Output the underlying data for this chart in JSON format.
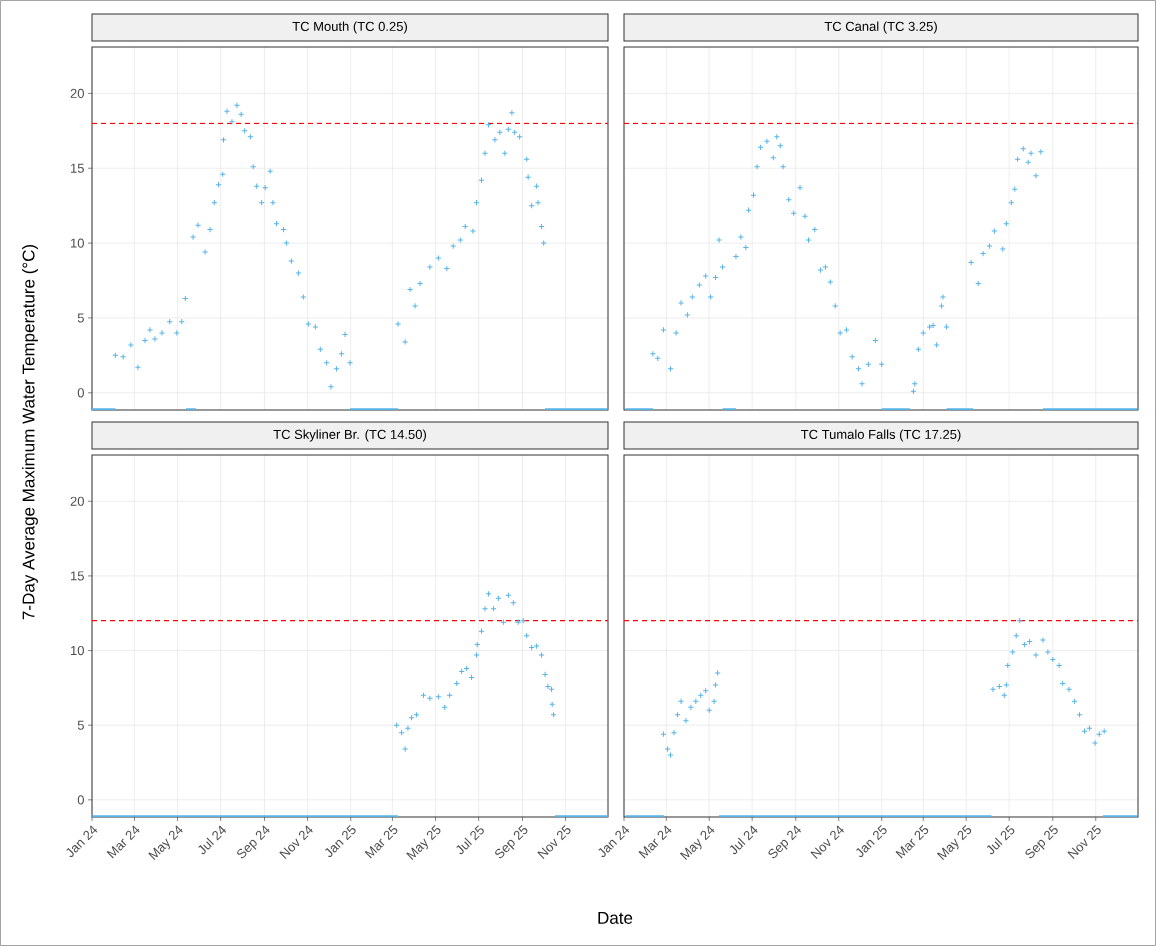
{
  "chart_data": [
    {
      "type": "scatter",
      "title": "TC Mouth (TC 0.25)",
      "ylabel": "7-Day Average Maximum Water Temperature (°C)",
      "series": [
        {
          "color": "#56b4e9",
          "marker": "cross",
          "x": [
            "2024-02-03",
            "2024-02-14",
            "2024-02-25",
            "2024-03-06",
            "2024-03-16",
            "2024-03-23",
            "2024-03-30",
            "2024-04-09",
            "2024-04-20",
            "2024-04-30",
            "2024-05-07",
            "2024-05-12",
            "2024-05-23",
            "2024-05-30",
            "2024-06-09",
            "2024-06-16",
            "2024-06-22",
            "2024-06-28",
            "2024-07-04",
            "2024-07-05",
            "2024-07-10",
            "2024-07-17",
            "2024-07-24",
            "2024-07-30",
            "2024-08-04",
            "2024-08-12",
            "2024-08-16",
            "2024-08-21",
            "2024-08-28",
            "2024-09-02",
            "2024-09-09",
            "2024-09-13",
            "2024-09-18",
            "2024-09-28",
            "2024-10-02",
            "2024-10-09",
            "2024-10-19",
            "2024-10-26",
            "2024-11-02",
            "2024-11-12",
            "2024-11-19",
            "2024-11-28",
            "2024-12-04",
            "2024-12-12",
            "2024-12-19",
            "2024-12-24",
            "2024-12-31",
            "2025-03-09",
            "2025-03-19",
            "2025-03-26",
            "2025-04-02",
            "2025-04-09",
            "2025-04-23",
            "2025-05-05",
            "2025-05-17",
            "2025-05-26",
            "2025-06-05",
            "2025-06-12",
            "2025-06-23",
            "2025-06-28",
            "2025-07-05",
            "2025-07-10",
            "2025-07-15",
            "2025-07-24",
            "2025-07-31",
            "2025-08-07",
            "2025-08-12",
            "2025-08-17",
            "2025-08-21",
            "2025-08-28",
            "2025-09-07",
            "2025-09-09",
            "2025-09-14",
            "2025-09-21",
            "2025-09-23",
            "2025-09-28",
            "2025-10-01"
          ],
          "values": [
            2.5,
            2.4,
            3.2,
            1.7,
            3.5,
            4.2,
            3.6,
            4.0,
            4.75,
            4.0,
            4.75,
            6.3,
            10.4,
            11.2,
            9.4,
            10.9,
            12.7,
            13.9,
            14.6,
            16.9,
            18.8,
            18.1,
            19.2,
            18.6,
            17.5,
            17.1,
            15.1,
            13.8,
            12.7,
            13.7,
            14.8,
            12.7,
            11.3,
            10.9,
            10.0,
            8.8,
            8.0,
            6.4,
            4.6,
            4.4,
            2.9,
            2.0,
            0.4,
            1.6,
            2.6,
            3.9,
            2.0,
            4.6,
            3.4,
            6.9,
            5.8,
            7.3,
            8.4,
            9.0,
            8.3,
            9.8,
            10.2,
            11.1,
            10.8,
            12.7,
            14.2,
            16.0,
            17.9,
            16.9,
            17.4,
            16.0,
            17.6,
            18.7,
            17.4,
            17.1,
            15.6,
            14.4,
            12.5,
            13.8,
            12.7,
            11.1,
            10.0
          ]
        },
        {
          "type": "line",
          "color": "#56b4e9",
          "x": [
            "2024-01-01",
            "2024-02-03"
          ],
          "values": [
            -1.1,
            -1.1
          ]
        },
        {
          "type": "line",
          "color": "#56b4e9",
          "x": [
            "2024-05-13",
            "2024-05-27"
          ],
          "values": [
            -1.1,
            -1.1
          ]
        },
        {
          "type": "line",
          "color": "#56b4e9",
          "x": [
            "2024-12-31",
            "2025-03-09"
          ],
          "values": [
            -1.1,
            -1.1
          ]
        },
        {
          "type": "line",
          "color": "#56b4e9",
          "x": [
            "2025-10-03",
            "2025-12-30"
          ],
          "values": [
            -1.1,
            -1.1
          ]
        }
      ],
      "xlim": [
        "2024-01-01",
        "2025-12-31"
      ],
      "xticks": [
        {
          "value": "2024-01-01",
          "label": null
        },
        {
          "value": "2024-03-01",
          "label": null
        },
        {
          "value": "2024-05-01",
          "label": null
        },
        {
          "value": "2024-07-01",
          "label": null
        },
        {
          "value": "2024-09-01",
          "label": null
        },
        {
          "value": "2024-11-01",
          "label": null
        },
        {
          "value": "2025-01-01",
          "label": null
        },
        {
          "value": "2025-03-01",
          "label": null
        },
        {
          "value": "2025-05-01",
          "label": null
        },
        {
          "value": "2025-07-01",
          "label": null
        },
        {
          "value": "2025-09-01",
          "label": null
        },
        {
          "value": "2025-11-01",
          "label": null
        }
      ],
      "ylim": [
        -1.15,
        23.1
      ],
      "yticks": [
        0,
        5,
        10,
        15,
        20
      ],
      "ref_lines": [
        {
          "axis": "y",
          "value": 18,
          "color": "#ff0000",
          "line_style": "dashed"
        }
      ],
      "grid": true,
      "tick_labels": "y"
    },
    {
      "type": "scatter",
      "title": "TC Canal (TC 3.25)",
      "series": [
        {
          "color": "#56b4e9",
          "marker": "cross",
          "x": [
            "2024-02-11",
            "2024-02-18",
            "2024-02-26",
            "2024-03-07",
            "2024-03-15",
            "2024-03-22",
            "2024-03-31",
            "2024-04-07",
            "2024-04-17",
            "2024-04-26",
            "2024-05-03",
            "2024-05-10",
            "2024-05-15",
            "2024-05-20",
            "2024-06-08",
            "2024-06-15",
            "2024-06-22",
            "2024-06-26",
            "2024-07-03",
            "2024-07-08",
            "2024-07-13",
            "2024-07-22",
            "2024-07-31",
            "2024-08-05",
            "2024-08-10",
            "2024-08-14",
            "2024-08-22",
            "2024-08-29",
            "2024-09-07",
            "2024-09-14",
            "2024-09-19",
            "2024-09-28",
            "2024-10-06",
            "2024-10-13",
            "2024-10-20",
            "2024-10-27",
            "2024-11-03",
            "2024-11-12",
            "2024-11-20",
            "2024-11-29",
            "2024-12-04",
            "2024-12-13",
            "2024-12-23",
            "2025-01-01",
            "2025-02-15",
            "2025-02-17",
            "2025-02-22",
            "2025-03-01",
            "2025-03-10",
            "2025-03-15",
            "2025-03-20",
            "2025-03-27",
            "2025-03-29",
            "2025-04-03",
            "2025-05-08",
            "2025-05-18",
            "2025-05-25",
            "2025-06-03",
            "2025-06-10",
            "2025-06-22",
            "2025-06-27",
            "2025-07-04",
            "2025-07-09",
            "2025-07-13",
            "2025-07-21",
            "2025-07-28",
            "2025-08-01",
            "2025-08-08",
            "2025-08-15"
          ],
          "values": [
            2.6,
            2.3,
            4.2,
            1.6,
            4.0,
            6.0,
            5.2,
            6.4,
            7.2,
            7.8,
            6.4,
            7.7,
            10.2,
            8.4,
            9.1,
            10.4,
            9.7,
            12.2,
            13.2,
            15.1,
            16.4,
            16.8,
            15.7,
            17.1,
            16.5,
            15.1,
            12.9,
            12.0,
            13.7,
            11.8,
            10.2,
            10.9,
            8.2,
            8.4,
            7.4,
            5.8,
            4.0,
            4.2,
            2.4,
            1.6,
            0.6,
            1.9,
            3.5,
            1.9,
            0.1,
            0.6,
            2.9,
            4.0,
            4.4,
            4.5,
            3.2,
            5.8,
            6.4,
            4.4,
            8.7,
            7.3,
            9.3,
            9.8,
            10.8,
            9.6,
            11.3,
            12.7,
            13.6,
            15.6,
            16.3,
            15.4,
            16.0,
            14.5,
            16.1
          ]
        },
        {
          "type": "line",
          "color": "#56b4e9",
          "x": [
            "2024-01-03",
            "2024-02-11"
          ],
          "values": [
            -1.1,
            -1.1
          ]
        },
        {
          "type": "line",
          "color": "#56b4e9",
          "x": [
            "2024-05-20",
            "2024-06-08"
          ],
          "values": [
            -1.1,
            -1.1
          ]
        },
        {
          "type": "line",
          "color": "#56b4e9",
          "x": [
            "2025-01-01",
            "2025-02-10"
          ],
          "values": [
            -1.1,
            -1.1
          ]
        },
        {
          "type": "line",
          "color": "#56b4e9",
          "x": [
            "2025-04-03",
            "2025-05-11"
          ],
          "values": [
            -1.1,
            -1.1
          ]
        },
        {
          "type": "line",
          "color": "#56b4e9",
          "x": [
            "2025-08-18",
            "2025-12-30"
          ],
          "values": [
            -1.1,
            -1.1
          ]
        }
      ],
      "xlim": [
        "2024-01-01",
        "2025-12-31"
      ],
      "xticks": [
        {
          "value": "2024-01-01",
          "label": null
        },
        {
          "value": "2024-03-01",
          "label": null
        },
        {
          "value": "2024-05-01",
          "label": null
        },
        {
          "value": "2024-07-01",
          "label": null
        },
        {
          "value": "2024-09-01",
          "label": null
        },
        {
          "value": "2024-11-01",
          "label": null
        },
        {
          "value": "2025-01-01",
          "label": null
        },
        {
          "value": "2025-03-01",
          "label": null
        },
        {
          "value": "2025-05-01",
          "label": null
        },
        {
          "value": "2025-07-01",
          "label": null
        },
        {
          "value": "2025-09-01",
          "label": null
        },
        {
          "value": "2025-11-01",
          "label": null
        }
      ],
      "ylim": [
        -1.15,
        23.1
      ],
      "yticks": [
        0,
        5,
        10,
        15,
        20
      ],
      "ref_lines": [
        {
          "axis": "y",
          "value": 18,
          "color": "#ff0000",
          "line_style": "dashed"
        }
      ],
      "grid": true,
      "tick_labels": false
    },
    {
      "type": "scatter",
      "title": "TC Skyliner Br. (TC 14.50)",
      "xlabel": "Date",
      "series": [
        {
          "color": "#56b4e9",
          "marker": "cross",
          "x": [
            "2025-03-07",
            "2025-03-14",
            "2025-03-19",
            "2025-03-23",
            "2025-03-28",
            "2025-04-04",
            "2025-04-14",
            "2025-04-23",
            "2025-05-05",
            "2025-05-14",
            "2025-05-21",
            "2025-05-31",
            "2025-06-07",
            "2025-06-14",
            "2025-06-21",
            "2025-06-28",
            "2025-06-29",
            "2025-07-05",
            "2025-07-10",
            "2025-07-15",
            "2025-07-22",
            "2025-07-29",
            "2025-08-05",
            "2025-08-12",
            "2025-08-19",
            "2025-08-26",
            "2025-09-02",
            "2025-09-07",
            "2025-09-14",
            "2025-09-21",
            "2025-09-28",
            "2025-10-03",
            "2025-10-07",
            "2025-10-12",
            "2025-10-13",
            "2025-10-15"
          ],
          "values": [
            5.0,
            4.5,
            3.4,
            4.8,
            5.5,
            5.7,
            7.0,
            6.8,
            6.9,
            6.2,
            7.0,
            7.8,
            8.6,
            8.8,
            8.2,
            9.7,
            10.4,
            11.3,
            12.8,
            13.8,
            12.8,
            13.5,
            11.9,
            13.7,
            13.2,
            11.9,
            12.0,
            11.0,
            10.2,
            10.3,
            9.7,
            8.4,
            7.6,
            7.4,
            6.4,
            5.7
          ]
        },
        {
          "type": "line",
          "color": "#56b4e9",
          "x": [
            "2024-01-01",
            "2025-03-09"
          ],
          "values": [
            -1.1,
            -1.1
          ]
        },
        {
          "type": "line",
          "color": "#56b4e9",
          "x": [
            "2025-10-17",
            "2025-12-31"
          ],
          "values": [
            -1.1,
            -1.1
          ]
        }
      ],
      "xlim": [
        "2024-01-01",
        "2025-12-31"
      ],
      "xticks": [
        {
          "value": "2024-01-01",
          "label": "Jan 24"
        },
        {
          "value": "2024-03-01",
          "label": "Mar 24"
        },
        {
          "value": "2024-05-01",
          "label": "May 24"
        },
        {
          "value": "2024-07-01",
          "label": "Jul 24"
        },
        {
          "value": "2024-09-01",
          "label": "Sep 24"
        },
        {
          "value": "2024-11-01",
          "label": "Nov 24"
        },
        {
          "value": "2025-01-01",
          "label": "Jan 25"
        },
        {
          "value": "2025-03-01",
          "label": "Mar 25"
        },
        {
          "value": "2025-05-01",
          "label": "May 25"
        },
        {
          "value": "2025-07-01",
          "label": "Jul 25"
        },
        {
          "value": "2025-09-01",
          "label": "Sep 25"
        },
        {
          "value": "2025-11-01",
          "label": "Nov 25"
        }
      ],
      "ylim": [
        -1.15,
        23.1
      ],
      "yticks": [
        0,
        5,
        10,
        15,
        20
      ],
      "ref_lines": [
        {
          "axis": "y",
          "value": 12,
          "color": "#ff0000",
          "line_style": "dashed"
        }
      ],
      "grid": true
    },
    {
      "type": "scatter",
      "title": "TC Tumalo Falls (TC 17.25)",
      "series": [
        {
          "color": "#56b4e9",
          "marker": "cross",
          "x": [
            "2024-02-26",
            "2024-03-03",
            "2024-03-07",
            "2024-03-12",
            "2024-03-17",
            "2024-03-22",
            "2024-03-29",
            "2024-04-05",
            "2024-04-12",
            "2024-04-19",
            "2024-04-26",
            "2024-05-01",
            "2024-05-08",
            "2024-05-10",
            "2024-05-13",
            "2025-06-08",
            "2025-06-17",
            "2025-06-24",
            "2025-06-27",
            "2025-06-29",
            "2025-07-06",
            "2025-07-11",
            "2025-07-16",
            "2025-07-23",
            "2025-07-30",
            "2025-08-08",
            "2025-08-18",
            "2025-08-25",
            "2025-09-01",
            "2025-09-10",
            "2025-09-15",
            "2025-09-24",
            "2025-10-02",
            "2025-10-09",
            "2025-10-16",
            "2025-10-23",
            "2025-10-31",
            "2025-11-06",
            "2025-11-13"
          ],
          "values": [
            4.4,
            3.4,
            3.0,
            4.5,
            5.7,
            6.6,
            5.3,
            6.2,
            6.6,
            7.0,
            7.3,
            6.0,
            6.6,
            7.7,
            8.5,
            7.4,
            7.6,
            7.0,
            7.7,
            9.0,
            9.9,
            11.0,
            12.0,
            10.4,
            10.6,
            9.7,
            10.7,
            9.9,
            9.4,
            9.0,
            7.8,
            7.4,
            6.6,
            5.7,
            4.6,
            4.8,
            3.8,
            4.4,
            4.6
          ]
        },
        {
          "type": "line",
          "color": "#56b4e9",
          "x": [
            "2024-01-03",
            "2024-02-27"
          ],
          "values": [
            -1.1,
            -1.1
          ]
        },
        {
          "type": "line",
          "color": "#56b4e9",
          "x": [
            "2024-05-15",
            "2025-06-06"
          ],
          "values": [
            -1.1,
            -1.1
          ]
        },
        {
          "type": "line",
          "color": "#56b4e9",
          "x": [
            "2025-11-11",
            "2025-12-30"
          ],
          "values": [
            -1.1,
            -1.1
          ]
        }
      ],
      "xlim": [
        "2024-01-01",
        "2025-12-31"
      ],
      "xticks": [
        {
          "value": "2024-01-01",
          "label": "Jan 24"
        },
        {
          "value": "2024-03-01",
          "label": "Mar 24"
        },
        {
          "value": "2024-05-01",
          "label": "May 24"
        },
        {
          "value": "2024-07-01",
          "label": "Jul 24"
        },
        {
          "value": "2024-09-01",
          "label": "Sep 24"
        },
        {
          "value": "2024-11-01",
          "label": "Nov 24"
        },
        {
          "value": "2025-01-01",
          "label": "Jan 25"
        },
        {
          "value": "2025-03-01",
          "label": "Mar 25"
        },
        {
          "value": "2025-05-01",
          "label": "May 25"
        },
        {
          "value": "2025-07-01",
          "label": "Jul 25"
        },
        {
          "value": "2025-09-01",
          "label": "Sep 25"
        },
        {
          "value": "2025-11-01",
          "label": "Nov 25"
        }
      ],
      "ylim": [
        -1.15,
        23.1
      ],
      "yticks": [
        0,
        5,
        10,
        15,
        20
      ],
      "ref_lines": [
        {
          "axis": "y",
          "value": 12,
          "color": "#ff0000",
          "line_style": "dashed"
        }
      ],
      "grid": true,
      "tick_labels": "x"
    }
  ]
}
